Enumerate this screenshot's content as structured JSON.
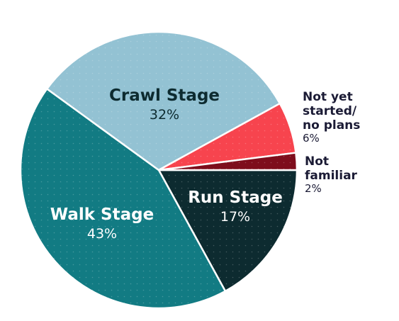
{
  "chart_data": {
    "type": "pie",
    "slices": [
      {
        "label": "Run Stage",
        "value": 17,
        "display": "17%",
        "color": "#0d2b30",
        "text_color": "#ffffff"
      },
      {
        "label": "Walk Stage",
        "value": 43,
        "display": "43%",
        "color": "#127b83",
        "text_color": "#ffffff"
      },
      {
        "label": "Crawl Stage",
        "value": 32,
        "display": "32%",
        "color": "#93c2d3",
        "text_color": "#0d2b30"
      },
      {
        "label": "Not yet started/ no plans",
        "label_lines": [
          "Not yet",
          "started/",
          "no plans"
        ],
        "value": 6,
        "display": "6%",
        "color": "#f7444e",
        "text_color": "#1b1b35"
      },
      {
        "label": "Not familiar",
        "label_lines": [
          "Not",
          "familiar"
        ],
        "value": 2,
        "display": "2%",
        "color": "#7e0d1c",
        "text_color": "#1b1b35"
      }
    ]
  }
}
